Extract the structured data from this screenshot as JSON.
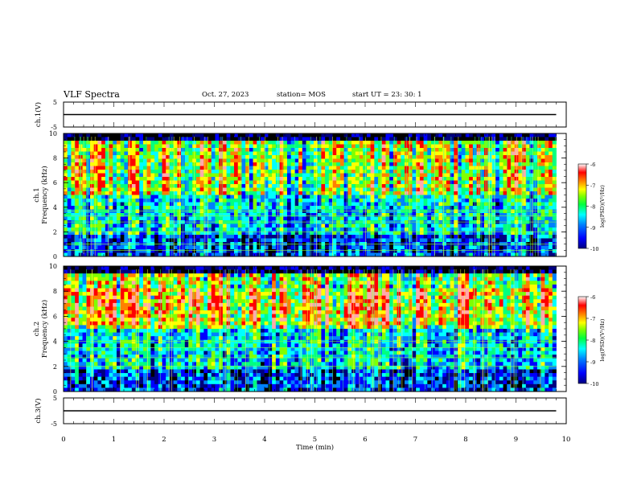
{
  "header": {
    "title": "VLF Spectra",
    "date": "Oct. 27, 2023",
    "station": "station= MOS",
    "start": "start  UT  =   23: 30: 1"
  },
  "chart_data": [
    {
      "type": "line",
      "panel": "ch1-waveform",
      "ylabel": "ch.1(V)",
      "ylim": [
        -5,
        5
      ],
      "yticks": [
        "5",
        "-5"
      ],
      "x": [
        0,
        9.8
      ],
      "y": [
        0,
        0
      ],
      "note_visible": "flat trace"
    },
    {
      "type": "heatmap",
      "panel": "ch1-spectrogram",
      "ylabel_top": "ch.1",
      "ylabel": "Frequency (kHz)",
      "ylim": [
        0,
        10
      ],
      "yticks": [
        "0",
        "2",
        "4",
        "6",
        "8",
        "10"
      ],
      "xlim": [
        0,
        10
      ],
      "data_xmax": 9.8,
      "colorbar": {
        "label": "log(PSD)(V²/Hz)",
        "range": [
          -10,
          -6
        ],
        "ticks": [
          "-6",
          "-7",
          "-8",
          "-9",
          "-10"
        ]
      }
    },
    {
      "type": "heatmap",
      "panel": "ch2-spectrogram",
      "ylabel_top": "ch.2",
      "ylabel": "Frequency (kHz)",
      "ylim": [
        0,
        10
      ],
      "yticks": [
        "0",
        "2",
        "4",
        "6",
        "8",
        "10"
      ],
      "xlim": [
        0,
        10
      ],
      "data_xmax": 9.8,
      "colorbar": {
        "label": "log(PSD)(V²/Hz)",
        "range": [
          -10,
          -6
        ],
        "ticks": [
          "-6",
          "-7",
          "-8",
          "-9",
          "-10"
        ]
      }
    },
    {
      "type": "line",
      "panel": "ch3-waveform",
      "ylabel": "ch.3(V)",
      "ylim": [
        -5,
        5
      ],
      "yticks": [
        "5",
        "-5"
      ],
      "x": [
        0,
        9.8
      ],
      "y": [
        0,
        0
      ]
    }
  ],
  "xaxis": {
    "label": "Time  (min)",
    "ticks": [
      "0",
      "1",
      "2",
      "3",
      "4",
      "5",
      "6",
      "7",
      "8",
      "9",
      "10"
    ],
    "range": [
      0,
      10
    ]
  },
  "colors": {
    "cmap": [
      "#000000",
      "#00007f",
      "#0000ff",
      "#0080ff",
      "#00ffff",
      "#00ff80",
      "#80ff00",
      "#ffff00",
      "#ff8000",
      "#ff0000",
      "#ffaaaa",
      "#ffffff"
    ]
  }
}
